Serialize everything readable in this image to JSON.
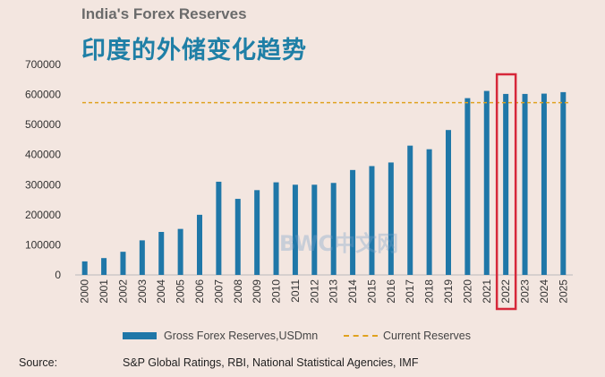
{
  "header": {
    "title": "India's Forex Reserves",
    "subtitle": "印度的外储变化趋势"
  },
  "chart_data": {
    "type": "bar",
    "title": "India's Forex Reserves",
    "subtitle": "印度的外储变化趋势",
    "categories": [
      "2000",
      "2001",
      "2002",
      "2003",
      "2004",
      "2005",
      "2006",
      "2007",
      "2008",
      "2009",
      "2010",
      "2011",
      "2012",
      "2013",
      "2014",
      "2015",
      "2016",
      "2017",
      "2018",
      "2019",
      "2020",
      "2021",
      "2022",
      "2023",
      "2024",
      "2025"
    ],
    "series": [
      {
        "name": "Gross Forex Reserves,USDmn",
        "values": [
          45000,
          56000,
          77000,
          115000,
          143000,
          153000,
          200000,
          310000,
          253000,
          282000,
          308000,
          300000,
          300000,
          306000,
          349000,
          362000,
          374000,
          430000,
          418000,
          482000,
          588000,
          612000,
          602000,
          602000,
          603000,
          608000
        ]
      }
    ],
    "reference_line": {
      "name": "Current Reserves",
      "value": 573000
    },
    "highlight_category": "2022",
    "yticks": [
      0,
      100000,
      200000,
      300000,
      400000,
      500000,
      600000,
      700000
    ],
    "ylim": [
      0,
      700000
    ],
    "xlabel": "",
    "ylabel": "",
    "colors": {
      "bar": "#1f77a8",
      "reference": "#e0a21f",
      "highlight": "#d6283a",
      "axis": "#bbbbbb",
      "tick_text": "#333333"
    }
  },
  "legend": {
    "bar_label": "Gross Forex Reserves,USDmn",
    "line_label": "Current Reserves"
  },
  "source": {
    "label": "Source:",
    "text": "S&P Global Ratings, RBI, National Statistical Agencies, IMF"
  },
  "watermark": "BWC中文网"
}
